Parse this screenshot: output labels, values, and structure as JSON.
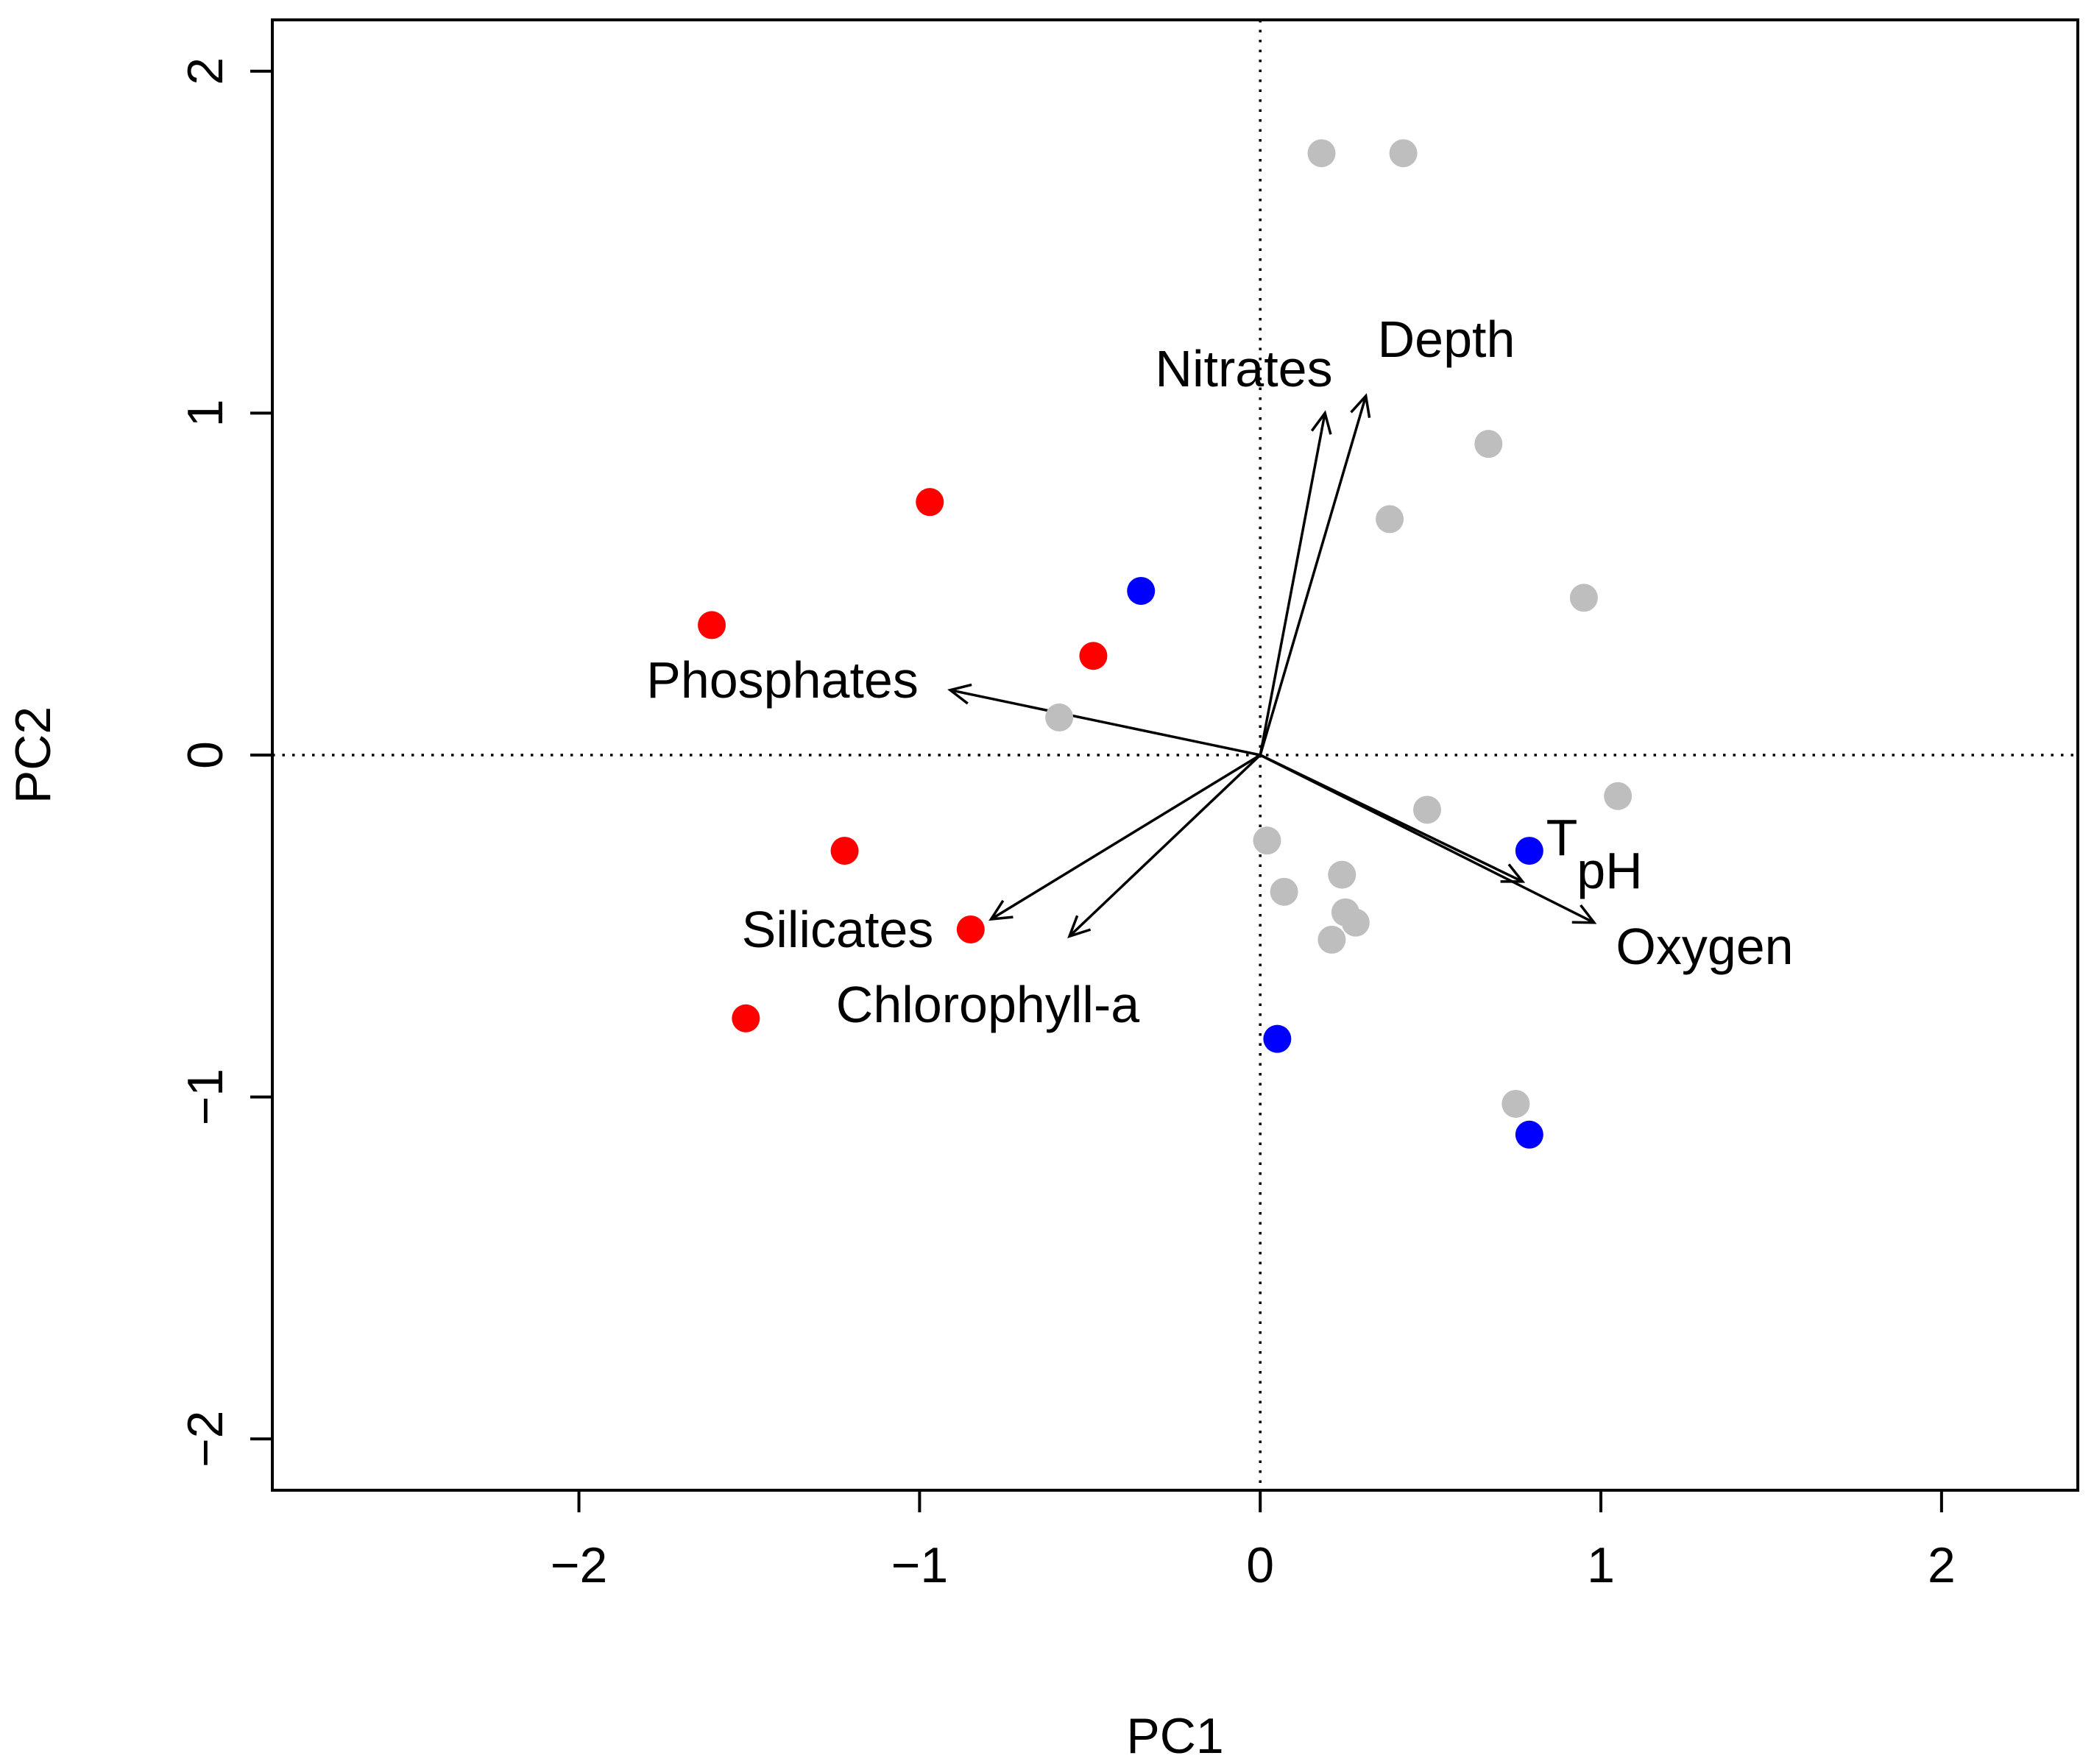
{
  "chart_data": {
    "type": "scatter",
    "title": "",
    "xlabel": "PC1",
    "ylabel": "PC2",
    "xlim": [
      -2.9,
      2.4
    ],
    "ylim": [
      -2.15,
      2.15
    ],
    "x_ticks": [
      -2,
      -1,
      0,
      1,
      2
    ],
    "y_ticks": [
      -2,
      -1,
      0,
      1,
      2
    ],
    "x_tick_labels": [
      "−2",
      "−1",
      "0",
      "1",
      "2"
    ],
    "y_tick_labels": [
      "−2",
      "−1",
      "0",
      "1",
      "2"
    ],
    "reference_lines": {
      "x": 0,
      "y": 0,
      "style": "dotted"
    },
    "series": [
      {
        "name": "red",
        "color": "#ff0000",
        "points": [
          {
            "x": -0.97,
            "y": 0.74
          },
          {
            "x": -1.61,
            "y": 0.38
          },
          {
            "x": -0.49,
            "y": 0.29
          },
          {
            "x": -1.22,
            "y": -0.28
          },
          {
            "x": -0.85,
            "y": -0.51
          },
          {
            "x": -1.51,
            "y": -0.77
          }
        ]
      },
      {
        "name": "blue",
        "color": "#0000ff",
        "points": [
          {
            "x": -0.35,
            "y": 0.48
          },
          {
            "x": 0.79,
            "y": -0.28
          },
          {
            "x": 0.05,
            "y": -0.83
          },
          {
            "x": 0.79,
            "y": -1.11
          }
        ]
      },
      {
        "name": "gray",
        "color": "#bebebe",
        "points": [
          {
            "x": 0.18,
            "y": 1.76
          },
          {
            "x": 0.42,
            "y": 1.76
          },
          {
            "x": 0.67,
            "y": 0.91
          },
          {
            "x": 0.38,
            "y": 0.69
          },
          {
            "x": 0.95,
            "y": 0.46
          },
          {
            "x": -0.59,
            "y": 0.11
          },
          {
            "x": 0.49,
            "y": -0.16
          },
          {
            "x": 1.05,
            "y": -0.12
          },
          {
            "x": 0.02,
            "y": -0.25
          },
          {
            "x": 0.07,
            "y": -0.4
          },
          {
            "x": 0.24,
            "y": -0.35
          },
          {
            "x": 0.25,
            "y": -0.46
          },
          {
            "x": 0.28,
            "y": -0.49
          },
          {
            "x": 0.21,
            "y": -0.54
          },
          {
            "x": 0.75,
            "y": -1.02
          }
        ]
      }
    ],
    "vectors": [
      {
        "label": "Nitrates",
        "x": 0.19,
        "y": 1.0
      },
      {
        "label": "Depth",
        "x": 0.31,
        "y": 1.05
      },
      {
        "label": "Phosphates",
        "x": -0.91,
        "y": 0.19
      },
      {
        "label": "Silicates",
        "x": -0.79,
        "y": -0.48
      },
      {
        "label": "Chlorophyll-a",
        "x": -0.56,
        "y": -0.53
      },
      {
        "label": "T",
        "x": 0.77,
        "y": -0.37
      },
      {
        "label": "pH",
        "x": 0.77,
        "y": -0.37
      },
      {
        "label": "Oxygen",
        "x": 0.98,
        "y": -0.49
      }
    ]
  }
}
